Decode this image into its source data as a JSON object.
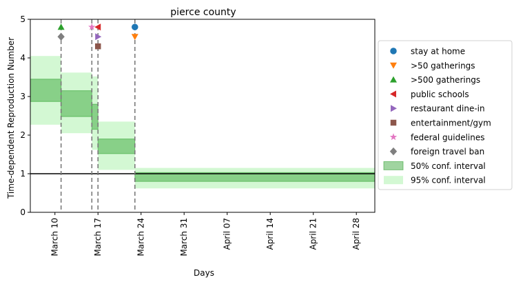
{
  "chart_data": {
    "type": "step",
    "title": "pierce county",
    "xlabel": "Days",
    "ylabel": "Time-dependent Reproduction Number",
    "x_is_date": true,
    "year": 2020,
    "xlim": [
      "2020-03-06",
      "2020-05-01"
    ],
    "ylim": [
      0,
      5
    ],
    "yticks": [
      0,
      1,
      2,
      3,
      4,
      5
    ],
    "xticks": [
      {
        "date": "2020-03-10",
        "label": "March 10"
      },
      {
        "date": "2020-03-17",
        "label": "March 17"
      },
      {
        "date": "2020-03-24",
        "label": "March 24"
      },
      {
        "date": "2020-03-31",
        "label": "March 31"
      },
      {
        "date": "2020-04-07",
        "label": "April 07"
      },
      {
        "date": "2020-04-14",
        "label": "April 14"
      },
      {
        "date": "2020-04-21",
        "label": "April 21"
      },
      {
        "date": "2020-04-28",
        "label": "April 28"
      }
    ],
    "reference_line_y": 1,
    "intervention_dates": [
      "2020-03-11",
      "2020-03-16",
      "2020-03-17",
      "2020-03-23"
    ],
    "segments": [
      {
        "start": "2020-03-06",
        "end": "2020-03-11",
        "ci50": [
          2.87,
          3.45
        ],
        "ci95": [
          2.27,
          4.05
        ]
      },
      {
        "start": "2020-03-11",
        "end": "2020-03-16",
        "ci50": [
          2.48,
          3.15
        ],
        "ci95": [
          2.05,
          3.62
        ]
      },
      {
        "start": "2020-03-16",
        "end": "2020-03-17",
        "ci50": [
          2.15,
          2.8
        ],
        "ci95": [
          1.62,
          3.52
        ]
      },
      {
        "start": "2020-03-17",
        "end": "2020-03-23",
        "ci50": [
          1.52,
          1.9
        ],
        "ci95": [
          1.1,
          2.35
        ]
      },
      {
        "start": "2020-03-23",
        "end": "2020-05-01",
        "ci50": [
          0.8,
          1.03
        ],
        "ci95": [
          0.62,
          1.15
        ]
      }
    ],
    "interventions": [
      {
        "name": "stay at home",
        "date": "2020-03-23",
        "y": 4.8,
        "marker": "circle",
        "color": "#1f77b4"
      },
      {
        "name": ">50 gatherings",
        "date": "2020-03-23",
        "y": 4.55,
        "marker": "triangle-down",
        "color": "#ff7f0e"
      },
      {
        "name": ">500 gatherings",
        "date": "2020-03-11",
        "y": 4.8,
        "marker": "triangle-up",
        "color": "#2ca02c"
      },
      {
        "name": "public schools",
        "date": "2020-03-17",
        "y": 4.8,
        "marker": "triangle-left",
        "color": "#d62728"
      },
      {
        "name": "restaurant dine-in",
        "date": "2020-03-17",
        "y": 4.55,
        "marker": "triangle-right",
        "color": "#9467bd"
      },
      {
        "name": "entertainment/gym",
        "date": "2020-03-17",
        "y": 4.3,
        "marker": "square",
        "color": "#8c564b"
      },
      {
        "name": "federal guidelines",
        "date": "2020-03-16",
        "y": 4.8,
        "marker": "star",
        "color": "#e377c2"
      },
      {
        "name": "foreign travel ban",
        "date": "2020-03-11",
        "y": 4.55,
        "marker": "diamond",
        "color": "#7f7f7f"
      }
    ],
    "legend": {
      "placement": "center-right-outside",
      "items": [
        {
          "label": "stay at home",
          "kind": "marker",
          "marker": "circle",
          "color": "#1f77b4"
        },
        {
          "label": ">50 gatherings",
          "kind": "marker",
          "marker": "triangle-down",
          "color": "#ff7f0e"
        },
        {
          "label": ">500 gatherings",
          "kind": "marker",
          "marker": "triangle-up",
          "color": "#2ca02c"
        },
        {
          "label": "public schools",
          "kind": "marker",
          "marker": "triangle-left",
          "color": "#d62728"
        },
        {
          "label": "restaurant dine-in",
          "kind": "marker",
          "marker": "triangle-right",
          "color": "#9467bd"
        },
        {
          "label": "entertainment/gym",
          "kind": "marker",
          "marker": "square",
          "color": "#8c564b"
        },
        {
          "label": "federal guidelines",
          "kind": "marker",
          "marker": "star",
          "color": "#e377c2"
        },
        {
          "label": "foreign travel ban",
          "kind": "marker",
          "marker": "diamond",
          "color": "#7f7f7f"
        },
        {
          "label": "50% conf. interval",
          "kind": "patch",
          "color": "#2ca02c"
        },
        {
          "label": "95% conf. interval",
          "kind": "patch",
          "color": "#90ee90"
        }
      ]
    },
    "colors": {
      "ci50_fill": "rgba(44,160,44,0.45)",
      "ci50_edge": "rgba(44,160,44,0.55)",
      "ci95_fill": "rgba(144,238,144,0.40)",
      "intervention_line": "#7a7a7a",
      "reference_line": "#000000"
    }
  }
}
